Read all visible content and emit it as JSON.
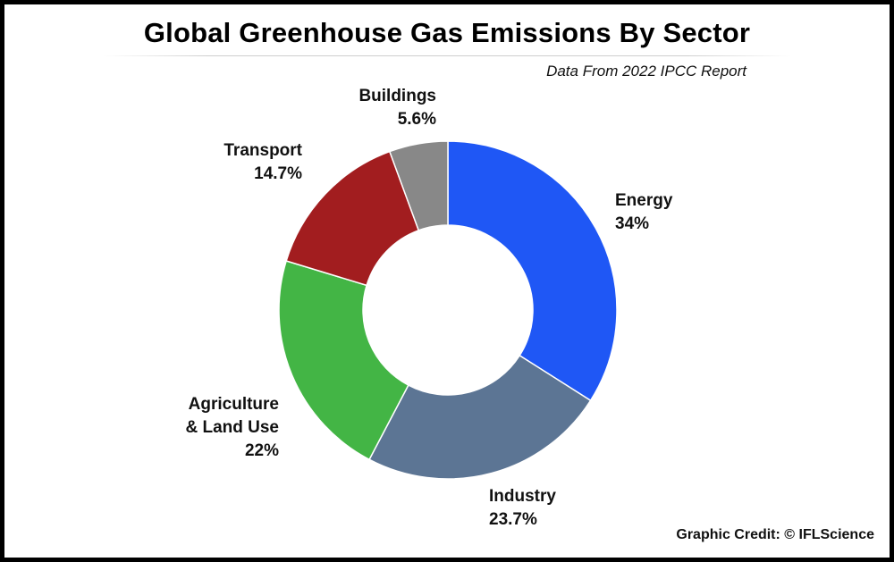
{
  "header": {
    "title": "Global Greenhouse Gas Emissions By Sector",
    "subtitle": "Data From 2022 IPCC Report"
  },
  "footer": {
    "credit": "Graphic Credit: © IFLScience"
  },
  "chart_data": {
    "type": "pie",
    "variant": "donut",
    "categories": [
      "Energy",
      "Industry",
      "Agriculture & Land Use",
      "Transport",
      "Buildings"
    ],
    "values": [
      34,
      23.7,
      22,
      14.7,
      5.6
    ],
    "unit": "%",
    "slices": [
      {
        "name": "Energy",
        "label_lines": [
          "Energy"
        ],
        "value": 34,
        "value_label": "34%",
        "color": "#1f57f5"
      },
      {
        "name": "Industry",
        "label_lines": [
          "Industry"
        ],
        "value": 23.7,
        "value_label": "23.7%",
        "color": "#5c7594"
      },
      {
        "name": "Agriculture & Land Use",
        "label_lines": [
          "Agriculture",
          "& Land Use"
        ],
        "value": 22,
        "value_label": "22%",
        "color": "#43b545"
      },
      {
        "name": "Transport",
        "label_lines": [
          "Transport"
        ],
        "value": 14.7,
        "value_label": "14.7%",
        "color": "#a21d1f"
      },
      {
        "name": "Buildings",
        "label_lines": [
          "Buildings"
        ],
        "value": 5.6,
        "value_label": "5.6%",
        "color": "#888888"
      }
    ]
  }
}
